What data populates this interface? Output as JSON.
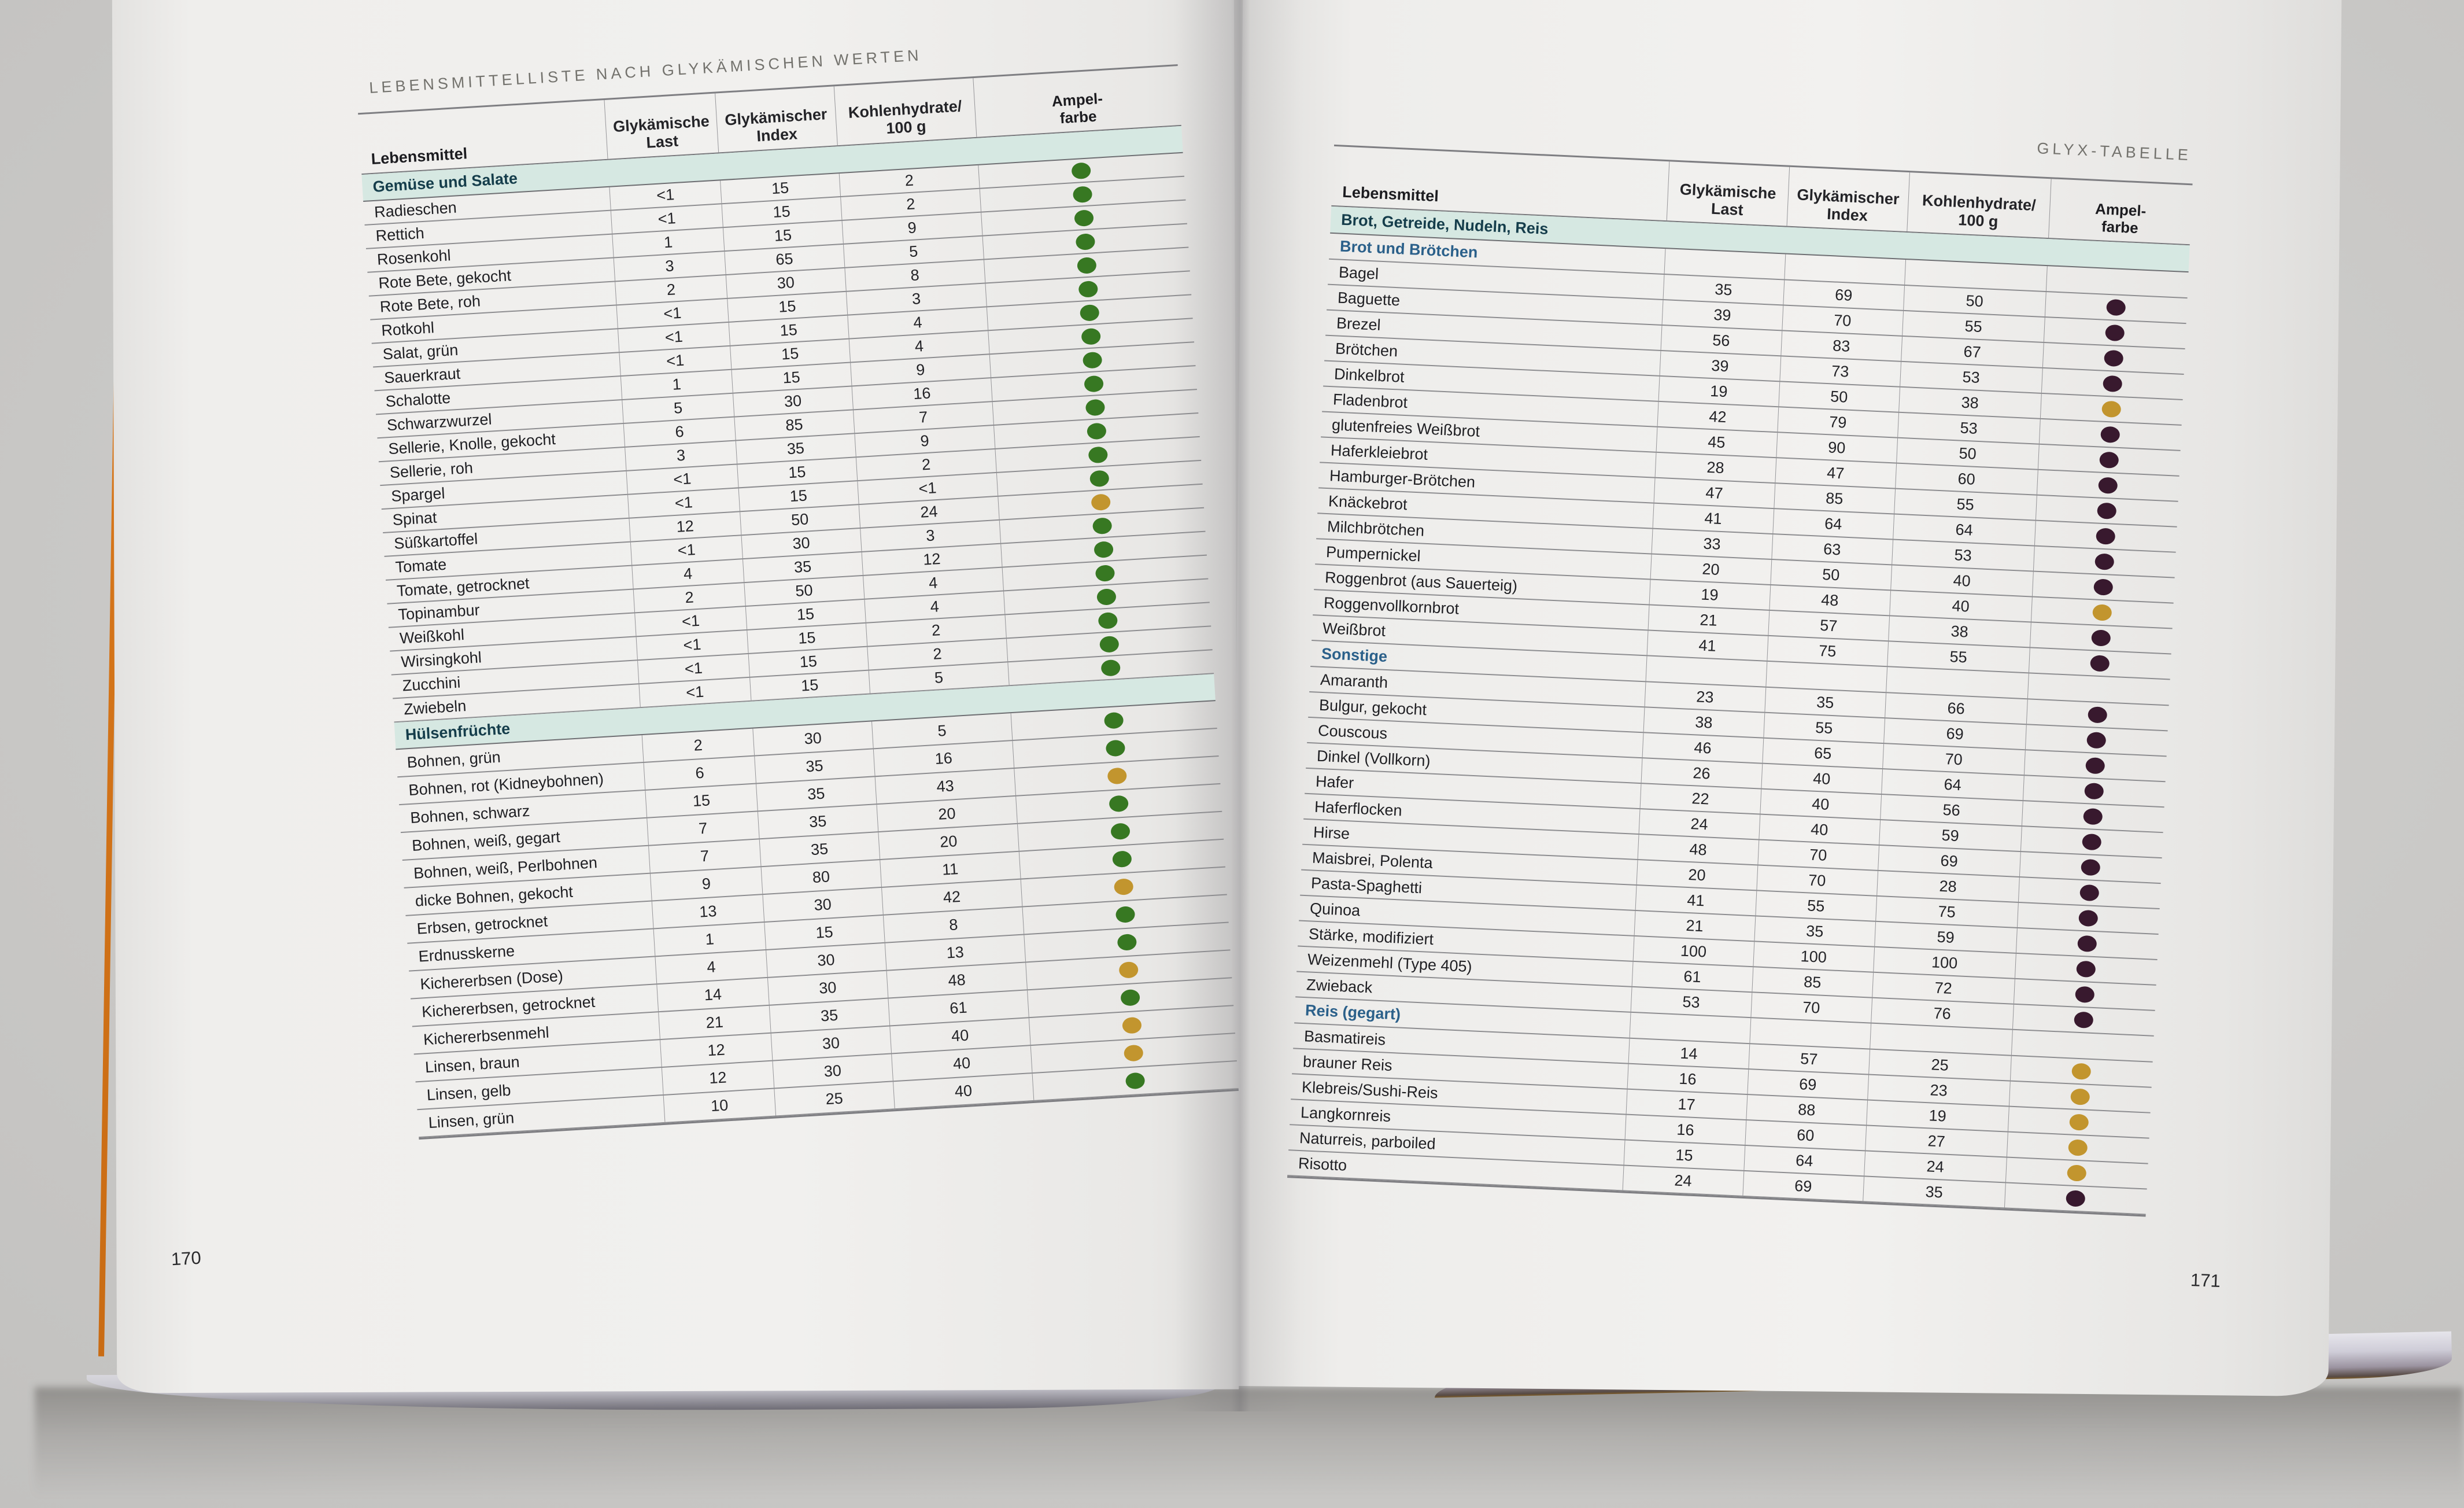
{
  "columns": [
    "Lebensmittel",
    "Glykämische\nLast",
    "Glykämischer\nIndex",
    "Kohlenhydrate/\n100 g",
    "Ampel-\nfarbe"
  ],
  "ampel_colors": {
    "green": "#377822",
    "yellow": "#c2952e",
    "dark": "#38192e"
  },
  "band_text_color": "#153d4b",
  "sub_text_color": "#2b608a",
  "left_page": {
    "running_title": "LEBENSMITTELLISTE NACH GLYKÄMISCHEN WERTEN",
    "page_number": "170",
    "sections": [
      {
        "band": "Gemüse und Salate",
        "rows": [
          {
            "name": "Radieschen",
            "gl": "<1",
            "gi": "15",
            "kh": "2",
            "ampel": "green"
          },
          {
            "name": "Rettich",
            "gl": "<1",
            "gi": "15",
            "kh": "2",
            "ampel": "green"
          },
          {
            "name": "Rosenkohl",
            "gl": "1",
            "gi": "15",
            "kh": "9",
            "ampel": "green"
          },
          {
            "name": "Rote Bete, gekocht",
            "gl": "3",
            "gi": "65",
            "kh": "5",
            "ampel": "green"
          },
          {
            "name": "Rote Bete, roh",
            "gl": "2",
            "gi": "30",
            "kh": "8",
            "ampel": "green"
          },
          {
            "name": "Rotkohl",
            "gl": "<1",
            "gi": "15",
            "kh": "3",
            "ampel": "green"
          },
          {
            "name": "Salat, grün",
            "gl": "<1",
            "gi": "15",
            "kh": "4",
            "ampel": "green"
          },
          {
            "name": "Sauerkraut",
            "gl": "<1",
            "gi": "15",
            "kh": "4",
            "ampel": "green"
          },
          {
            "name": "Schalotte",
            "gl": "1",
            "gi": "15",
            "kh": "9",
            "ampel": "green"
          },
          {
            "name": "Schwarzwurzel",
            "gl": "5",
            "gi": "30",
            "kh": "16",
            "ampel": "green"
          },
          {
            "name": "Sellerie, Knolle, gekocht",
            "gl": "6",
            "gi": "85",
            "kh": "7",
            "ampel": "green"
          },
          {
            "name": "Sellerie, roh",
            "gl": "3",
            "gi": "35",
            "kh": "9",
            "ampel": "green"
          },
          {
            "name": "Spargel",
            "gl": "<1",
            "gi": "15",
            "kh": "2",
            "ampel": "green"
          },
          {
            "name": "Spinat",
            "gl": "<1",
            "gi": "15",
            "kh": "<1",
            "ampel": "green"
          },
          {
            "name": "Süßkartoffel",
            "gl": "12",
            "gi": "50",
            "kh": "24",
            "ampel": "yellow"
          },
          {
            "name": "Tomate",
            "gl": "<1",
            "gi": "30",
            "kh": "3",
            "ampel": "green"
          },
          {
            "name": "Tomate, getrocknet",
            "gl": "4",
            "gi": "35",
            "kh": "12",
            "ampel": "green"
          },
          {
            "name": "Topinambur",
            "gl": "2",
            "gi": "50",
            "kh": "4",
            "ampel": "green"
          },
          {
            "name": "Weißkohl",
            "gl": "<1",
            "gi": "15",
            "kh": "4",
            "ampel": "green"
          },
          {
            "name": "Wirsingkohl",
            "gl": "<1",
            "gi": "15",
            "kh": "2",
            "ampel": "green"
          },
          {
            "name": "Zucchini",
            "gl": "<1",
            "gi": "15",
            "kh": "2",
            "ampel": "green"
          },
          {
            "name": "Zwiebeln",
            "gl": "<1",
            "gi": "15",
            "kh": "5",
            "ampel": "green"
          }
        ]
      },
      {
        "band": "Hülsenfrüchte",
        "rows": [
          {
            "name": "Bohnen, grün",
            "gl": "2",
            "gi": "30",
            "kh": "5",
            "ampel": "green"
          },
          {
            "name": "Bohnen, rot (Kidneybohnen)",
            "gl": "6",
            "gi": "35",
            "kh": "16",
            "ampel": "green"
          },
          {
            "name": "Bohnen, schwarz",
            "gl": "15",
            "gi": "35",
            "kh": "43",
            "ampel": "yellow"
          },
          {
            "name": "Bohnen, weiß, gegart",
            "gl": "7",
            "gi": "35",
            "kh": "20",
            "ampel": "green"
          },
          {
            "name": "Bohnen, weiß, Perlbohnen",
            "gl": "7",
            "gi": "35",
            "kh": "20",
            "ampel": "green"
          },
          {
            "name": "dicke Bohnen, gekocht",
            "gl": "9",
            "gi": "80",
            "kh": "11",
            "ampel": "green"
          },
          {
            "name": "Erbsen, getrocknet",
            "gl": "13",
            "gi": "30",
            "kh": "42",
            "ampel": "yellow"
          },
          {
            "name": "Erdnusskerne",
            "gl": "1",
            "gi": "15",
            "kh": "8",
            "ampel": "green"
          },
          {
            "name": "Kichererbsen (Dose)",
            "gl": "4",
            "gi": "30",
            "kh": "13",
            "ampel": "green"
          },
          {
            "name": "Kichererbsen, getrocknet",
            "gl": "14",
            "gi": "30",
            "kh": "48",
            "ampel": "yellow"
          },
          {
            "name": "Kichererbsenmehl",
            "gl": "21",
            "gi": "35",
            "kh": "61",
            "ampel": "green"
          },
          {
            "name": "Linsen, braun",
            "gl": "12",
            "gi": "30",
            "kh": "40",
            "ampel": "yellow"
          },
          {
            "name": "Linsen, gelb",
            "gl": "12",
            "gi": "30",
            "kh": "40",
            "ampel": "yellow"
          },
          {
            "name": "Linsen, grün",
            "gl": "10",
            "gi": "25",
            "kh": "40",
            "ampel": "green"
          }
        ]
      }
    ]
  },
  "right_page": {
    "running_title": "GLYX-TABELLE",
    "page_number": "171",
    "section_band": "Brot, Getreide, Nudeln, Reis",
    "groups": [
      {
        "sub": "Brot und Brötchen",
        "rows": [
          {
            "name": "Bagel",
            "gl": "35",
            "gi": "69",
            "kh": "50",
            "ampel": "dark"
          },
          {
            "name": "Baguette",
            "gl": "39",
            "gi": "70",
            "kh": "55",
            "ampel": "dark"
          },
          {
            "name": "Brezel",
            "gl": "56",
            "gi": "83",
            "kh": "67",
            "ampel": "dark"
          },
          {
            "name": "Brötchen",
            "gl": "39",
            "gi": "73",
            "kh": "53",
            "ampel": "dark"
          },
          {
            "name": "Dinkelbrot",
            "gl": "19",
            "gi": "50",
            "kh": "38",
            "ampel": "yellow"
          },
          {
            "name": "Fladenbrot",
            "gl": "42",
            "gi": "79",
            "kh": "53",
            "ampel": "dark"
          },
          {
            "name": "glutenfreies Weißbrot",
            "gl": "45",
            "gi": "90",
            "kh": "50",
            "ampel": "dark"
          },
          {
            "name": "Haferkleiebrot",
            "gl": "28",
            "gi": "47",
            "kh": "60",
            "ampel": "dark"
          },
          {
            "name": "Hamburger-Brötchen",
            "gl": "47",
            "gi": "85",
            "kh": "55",
            "ampel": "dark"
          },
          {
            "name": "Knäckebrot",
            "gl": "41",
            "gi": "64",
            "kh": "64",
            "ampel": "dark"
          },
          {
            "name": "Milchbrötchen",
            "gl": "33",
            "gi": "63",
            "kh": "53",
            "ampel": "dark"
          },
          {
            "name": "Pumpernickel",
            "gl": "20",
            "gi": "50",
            "kh": "40",
            "ampel": "dark"
          },
          {
            "name": "Roggenbrot (aus Sauerteig)",
            "gl": "19",
            "gi": "48",
            "kh": "40",
            "ampel": "yellow"
          },
          {
            "name": "Roggenvollkornbrot",
            "gl": "21",
            "gi": "57",
            "kh": "38",
            "ampel": "dark"
          },
          {
            "name": "Weißbrot",
            "gl": "41",
            "gi": "75",
            "kh": "55",
            "ampel": "dark"
          }
        ]
      },
      {
        "sub": "Sonstige",
        "rows": [
          {
            "name": "Amaranth",
            "gl": "23",
            "gi": "35",
            "kh": "66",
            "ampel": "dark"
          },
          {
            "name": "Bulgur, gekocht",
            "gl": "38",
            "gi": "55",
            "kh": "69",
            "ampel": "dark"
          },
          {
            "name": "Couscous",
            "gl": "46",
            "gi": "65",
            "kh": "70",
            "ampel": "dark"
          },
          {
            "name": "Dinkel (Vollkorn)",
            "gl": "26",
            "gi": "40",
            "kh": "64",
            "ampel": "dark"
          },
          {
            "name": "Hafer",
            "gl": "22",
            "gi": "40",
            "kh": "56",
            "ampel": "dark"
          },
          {
            "name": "Haferflocken",
            "gl": "24",
            "gi": "40",
            "kh": "59",
            "ampel": "dark"
          },
          {
            "name": "Hirse",
            "gl": "48",
            "gi": "70",
            "kh": "69",
            "ampel": "dark"
          },
          {
            "name": "Maisbrei, Polenta",
            "gl": "20",
            "gi": "70",
            "kh": "28",
            "ampel": "dark"
          },
          {
            "name": "Pasta-Spaghetti",
            "gl": "41",
            "gi": "55",
            "kh": "75",
            "ampel": "dark"
          },
          {
            "name": "Quinoa",
            "gl": "21",
            "gi": "35",
            "kh": "59",
            "ampel": "dark"
          },
          {
            "name": "Stärke, modifiziert",
            "gl": "100",
            "gi": "100",
            "kh": "100",
            "ampel": "dark"
          },
          {
            "name": "Weizenmehl (Type 405)",
            "gl": "61",
            "gi": "85",
            "kh": "72",
            "ampel": "dark"
          },
          {
            "name": "Zwieback",
            "gl": "53",
            "gi": "70",
            "kh": "76",
            "ampel": "dark"
          }
        ]
      },
      {
        "sub": "Reis (gegart)",
        "rows": [
          {
            "name": "Basmatireis",
            "gl": "14",
            "gi": "57",
            "kh": "25",
            "ampel": "yellow"
          },
          {
            "name": "brauner Reis",
            "gl": "16",
            "gi": "69",
            "kh": "23",
            "ampel": "yellow"
          },
          {
            "name": "Klebreis/Sushi-Reis",
            "gl": "17",
            "gi": "88",
            "kh": "19",
            "ampel": "yellow"
          },
          {
            "name": "Langkornreis",
            "gl": "16",
            "gi": "60",
            "kh": "27",
            "ampel": "yellow"
          },
          {
            "name": "Naturreis, parboiled",
            "gl": "15",
            "gi": "64",
            "kh": "24",
            "ampel": "yellow"
          },
          {
            "name": "Risotto",
            "gl": "24",
            "gi": "69",
            "kh": "35",
            "ampel": "dark"
          }
        ]
      }
    ]
  }
}
